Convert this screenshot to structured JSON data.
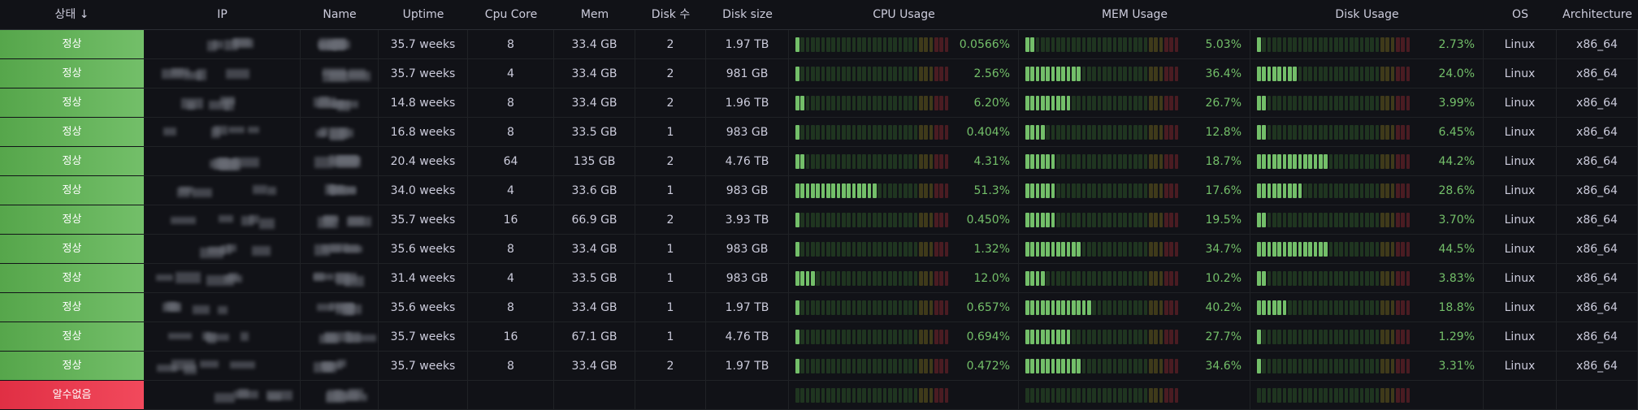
{
  "header": [
    "상태",
    "IP",
    "Name",
    "Uptime",
    "Cpu Core",
    "Mem",
    "Disk 수",
    "Disk size",
    "CPU Usage",
    "MEM Usage",
    "Disk Usage",
    "OS",
    "Architecture"
  ],
  "table": {
    "rows": [
      {
        "status": "정상",
        "uptime": "35.7 weeks",
        "cpu_core": 8,
        "mem": "33.4 GB",
        "disk_count": 2,
        "disk_size": "1.97 TB",
        "cpu_usage": {
          "value": 0.0566,
          "label": "0.0566%"
        },
        "mem_usage": {
          "value": 5.03,
          "label": "5.03%"
        },
        "disk_usage": {
          "value": 2.73,
          "label": "2.73%"
        },
        "os": "Linux",
        "arch": "x86_64"
      },
      {
        "status": "정상",
        "uptime": "35.7 weeks",
        "cpu_core": 4,
        "mem": "33.4 GB",
        "disk_count": 2,
        "disk_size": "981 GB",
        "cpu_usage": {
          "value": 2.56,
          "label": "2.56%"
        },
        "mem_usage": {
          "value": 36.4,
          "label": "36.4%"
        },
        "disk_usage": {
          "value": 24.0,
          "label": "24.0%"
        },
        "os": "Linux",
        "arch": "x86_64"
      },
      {
        "status": "정상",
        "uptime": "14.8 weeks",
        "cpu_core": 8,
        "mem": "33.4 GB",
        "disk_count": 2,
        "disk_size": "1.96 TB",
        "cpu_usage": {
          "value": 6.2,
          "label": "6.20%"
        },
        "mem_usage": {
          "value": 26.7,
          "label": "26.7%"
        },
        "disk_usage": {
          "value": 3.99,
          "label": "3.99%"
        },
        "os": "Linux",
        "arch": "x86_64"
      },
      {
        "status": "정상",
        "uptime": "16.8 weeks",
        "cpu_core": 8,
        "mem": "33.5 GB",
        "disk_count": 1,
        "disk_size": "983 GB",
        "cpu_usage": {
          "value": 0.404,
          "label": "0.404%"
        },
        "mem_usage": {
          "value": 12.8,
          "label": "12.8%"
        },
        "disk_usage": {
          "value": 6.45,
          "label": "6.45%"
        },
        "os": "Linux",
        "arch": "x86_64"
      },
      {
        "status": "정상",
        "uptime": "20.4 weeks",
        "cpu_core": 64,
        "mem": "135 GB",
        "disk_count": 2,
        "disk_size": "4.76 TB",
        "cpu_usage": {
          "value": 4.31,
          "label": "4.31%"
        },
        "mem_usage": {
          "value": 18.7,
          "label": "18.7%"
        },
        "disk_usage": {
          "value": 44.2,
          "label": "44.2%"
        },
        "os": "Linux",
        "arch": "x86_64"
      },
      {
        "status": "정상",
        "uptime": "34.0 weeks",
        "cpu_core": 4,
        "mem": "33.6 GB",
        "disk_count": 1,
        "disk_size": "983 GB",
        "cpu_usage": {
          "value": 51.3,
          "label": "51.3%"
        },
        "mem_usage": {
          "value": 17.6,
          "label": "17.6%"
        },
        "disk_usage": {
          "value": 28.6,
          "label": "28.6%"
        },
        "os": "Linux",
        "arch": "x86_64"
      },
      {
        "status": "정상",
        "uptime": "35.7 weeks",
        "cpu_core": 16,
        "mem": "66.9 GB",
        "disk_count": 2,
        "disk_size": "3.93 TB",
        "cpu_usage": {
          "value": 0.45,
          "label": "0.450%"
        },
        "mem_usage": {
          "value": 19.5,
          "label": "19.5%"
        },
        "disk_usage": {
          "value": 3.7,
          "label": "3.70%"
        },
        "os": "Linux",
        "arch": "x86_64"
      },
      {
        "status": "정상",
        "uptime": "35.6 weeks",
        "cpu_core": 8,
        "mem": "33.4 GB",
        "disk_count": 1,
        "disk_size": "983 GB",
        "cpu_usage": {
          "value": 1.32,
          "label": "1.32%"
        },
        "mem_usage": {
          "value": 34.7,
          "label": "34.7%"
        },
        "disk_usage": {
          "value": 44.5,
          "label": "44.5%"
        },
        "os": "Linux",
        "arch": "x86_64"
      },
      {
        "status": "정상",
        "uptime": "31.4 weeks",
        "cpu_core": 4,
        "mem": "33.5 GB",
        "disk_count": 1,
        "disk_size": "983 GB",
        "cpu_usage": {
          "value": 12.0,
          "label": "12.0%"
        },
        "mem_usage": {
          "value": 10.2,
          "label": "10.2%"
        },
        "disk_usage": {
          "value": 3.83,
          "label": "3.83%"
        },
        "os": "Linux",
        "arch": "x86_64"
      },
      {
        "status": "정상",
        "uptime": "35.6 weeks",
        "cpu_core": 8,
        "mem": "33.4 GB",
        "disk_count": 1,
        "disk_size": "1.97 TB",
        "cpu_usage": {
          "value": 0.657,
          "label": "0.657%"
        },
        "mem_usage": {
          "value": 40.2,
          "label": "40.2%"
        },
        "disk_usage": {
          "value": 18.8,
          "label": "18.8%"
        },
        "os": "Linux",
        "arch": "x86_64"
      },
      {
        "status": "정상",
        "uptime": "35.7 weeks",
        "cpu_core": 16,
        "mem": "67.1 GB",
        "disk_count": 1,
        "disk_size": "4.76 TB",
        "cpu_usage": {
          "value": 0.694,
          "label": "0.694%"
        },
        "mem_usage": {
          "value": 27.7,
          "label": "27.7%"
        },
        "disk_usage": {
          "value": 1.29,
          "label": "1.29%"
        },
        "os": "Linux",
        "arch": "x86_64"
      },
      {
        "status": "정상",
        "uptime": "35.7 weeks",
        "cpu_core": 8,
        "mem": "33.4 GB",
        "disk_count": 2,
        "disk_size": "1.97 TB",
        "cpu_usage": {
          "value": 0.472,
          "label": "0.472%"
        },
        "mem_usage": {
          "value": 34.6,
          "label": "34.6%"
        },
        "disk_usage": {
          "value": 3.31,
          "label": "3.31%"
        },
        "os": "Linux",
        "arch": "x86_64"
      },
      {
        "status": "알수없음"
      }
    ]
  }
}
